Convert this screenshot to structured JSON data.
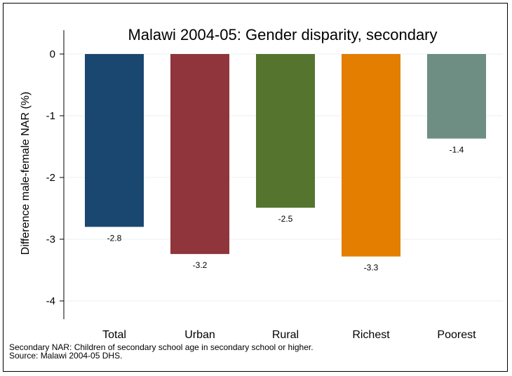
{
  "chart_data": {
    "type": "bar",
    "title": "Malawi 2004-05: Gender disparity, secondary",
    "xlabel": "",
    "ylabel": "Difference male-female NAR (%)",
    "categories": [
      "Total",
      "Urban",
      "Rural",
      "Richest",
      "Poorest"
    ],
    "values": [
      -2.8,
      -3.24,
      -2.49,
      -3.28,
      -1.37
    ],
    "value_labels": [
      "-2.8",
      "-3.2",
      "-2.5",
      "-3.3",
      "-1.4"
    ],
    "colors": [
      "#1a476f",
      "#90353b",
      "#55752f",
      "#e37e00",
      "#6e8e84"
    ],
    "ylim": [
      -4.4,
      0.1
    ],
    "yticks": [
      0,
      -1,
      -2,
      -3,
      -4
    ],
    "ytick_labels": [
      "0",
      "-1",
      "-2",
      "-3",
      "-4"
    ],
    "grid": true,
    "legend": "none"
  },
  "notes": {
    "line1": "Secondary NAR: Children of secondary school age in secondary school or higher.",
    "line2": "Source: Malawi 2004-05 DHS."
  }
}
